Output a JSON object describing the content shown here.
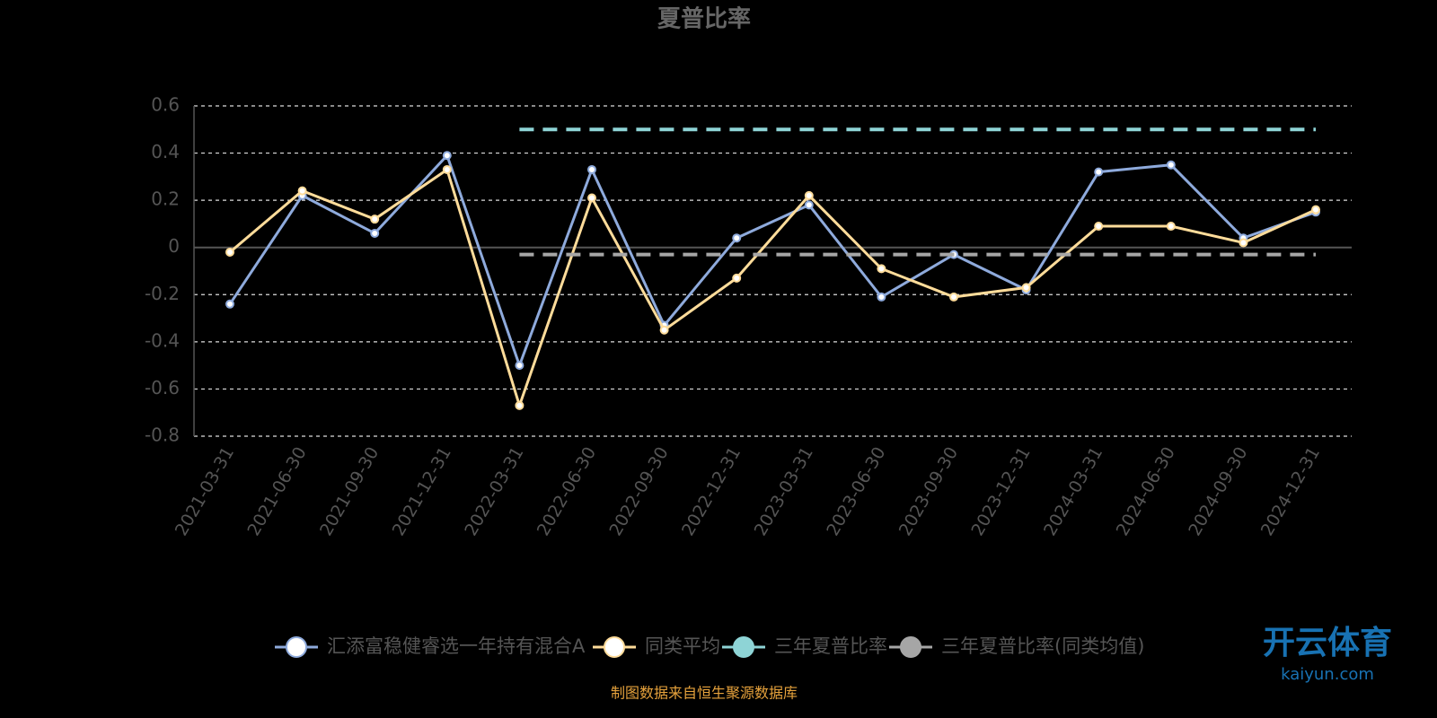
{
  "chart_data": {
    "type": "line",
    "title": "夏普比率",
    "categories": [
      "2021-03-31",
      "2021-06-30",
      "2021-09-30",
      "2021-12-31",
      "2022-03-31",
      "2022-06-30",
      "2022-09-30",
      "2022-12-31",
      "2023-03-31",
      "2023-06-30",
      "2023-09-30",
      "2023-12-31",
      "2024-03-31",
      "2024-06-30",
      "2024-09-30",
      "2024-12-31"
    ],
    "series": [
      {
        "name": "汇添富稳健睿选一年持有混合A",
        "color": "#8eaadc",
        "dashed": false,
        "values": [
          -0.24,
          0.22,
          0.06,
          0.39,
          -0.5,
          0.33,
          -0.33,
          0.04,
          0.18,
          -0.21,
          -0.03,
          -0.18,
          0.32,
          0.35,
          0.04,
          0.15
        ]
      },
      {
        "name": "同类平均",
        "color": "#ffdc9a",
        "dashed": false,
        "values": [
          -0.02,
          0.24,
          0.12,
          0.33,
          -0.67,
          0.21,
          -0.35,
          -0.13,
          0.22,
          -0.09,
          -0.21,
          -0.17,
          0.09,
          0.09,
          0.02,
          0.16
        ]
      },
      {
        "name": "三年夏普比率",
        "color": "#8ed4d6",
        "dashed": true,
        "values": [
          null,
          null,
          null,
          null,
          0.5,
          0.5,
          0.5,
          0.5,
          0.5,
          0.5,
          0.5,
          0.5,
          0.5,
          0.5,
          0.5,
          0.5
        ]
      },
      {
        "name": "三年夏普比率(同类均值)",
        "color": "#a6a6a6",
        "dashed": true,
        "values": [
          null,
          null,
          null,
          null,
          -0.03,
          -0.03,
          -0.03,
          -0.03,
          -0.03,
          -0.03,
          -0.03,
          -0.03,
          -0.03,
          -0.03,
          -0.03,
          -0.03
        ]
      }
    ],
    "ylim": [
      -0.8,
      0.6
    ],
    "yticks": [
      0.6,
      0.4,
      0.2,
      0,
      -0.2,
      -0.4,
      -0.6,
      -0.8
    ],
    "grid": true,
    "legend": "bottom",
    "source": "制图数据来自恒生聚源数据库",
    "watermark": "开云体育",
    "watermark_url": "kaiyun.com"
  }
}
